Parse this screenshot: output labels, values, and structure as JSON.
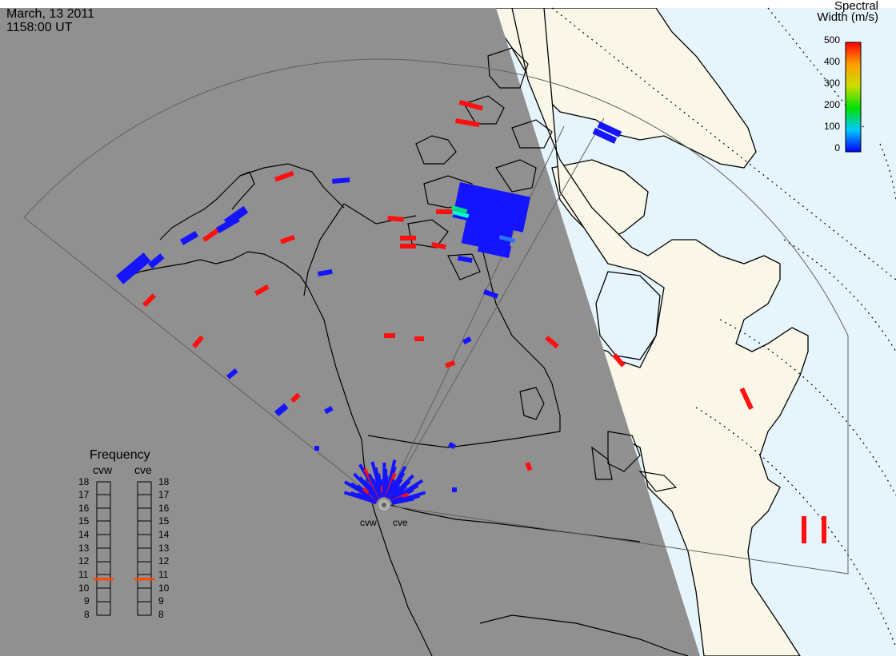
{
  "header": {
    "date": "March, 13 2011",
    "time": "1158:00 UT"
  },
  "colorbar": {
    "title_line1": "Spectral",
    "title_line2": "Width (m/s)",
    "ticks": [
      "500",
      "400",
      "300",
      "200",
      "100",
      "0"
    ]
  },
  "frequency_panel": {
    "title": "Frequency",
    "radars": [
      "cvw",
      "cve"
    ],
    "scale": [
      "18",
      "17",
      "16",
      "15",
      "14",
      "13",
      "12",
      "11",
      "10",
      "9",
      "8"
    ],
    "cvw_mhz": 10.7,
    "cve_mhz": 10.7
  },
  "radar_sites": {
    "west_label": "cvw",
    "east_label": "cve"
  },
  "colors": {
    "night": "#909090",
    "day_land": "#faf7e8",
    "day_ocean": "#e6f4fb",
    "scatter_low": "#1414ff",
    "scatter_high": "#ff1010",
    "freq_marker": "#ff4500"
  }
}
